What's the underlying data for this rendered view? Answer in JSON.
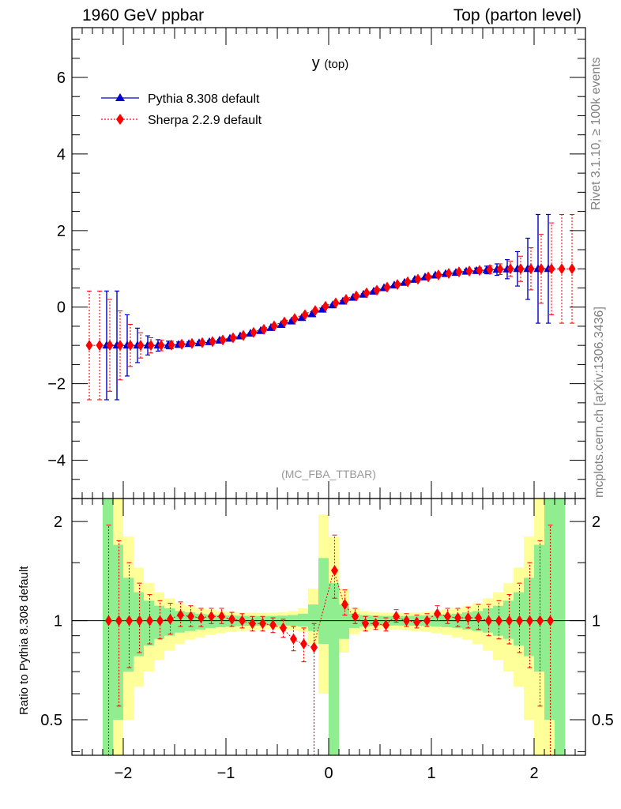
{
  "header": {
    "left": "1960 GeV ppbar",
    "right": "Top (parton level)"
  },
  "side_labels": {
    "top": "Rivet 3.1.10, ≥ 100k events",
    "bottom": "mcplots.cern.ch [arXiv:1306.3436]"
  },
  "colors": {
    "pythia": "#0000cc",
    "sherpa": "#ff0000",
    "band_green": "#90ee90",
    "band_yellow": "#ffff99",
    "watermark": "#999999"
  },
  "chart_data": [
    {
      "type": "scatter",
      "panel": "main",
      "title": "y",
      "title_suffix": "(top)",
      "watermark": "(MC_FBA_TTBAR)",
      "xlim": [
        -2.5,
        2.5
      ],
      "ylim": [
        -5.0,
        7.3
      ],
      "yticks": [
        -4,
        -2,
        0,
        2,
        4,
        6
      ],
      "ytick_labels": [
        "−4",
        "−2",
        "0",
        "2",
        "4",
        "6"
      ],
      "xticks": [
        -2,
        -1,
        0,
        1,
        2
      ],
      "xtick_labels": [
        "−2",
        "−1",
        "0",
        "1",
        "2"
      ],
      "legend_position": "top-left",
      "x": [
        -2.35,
        -2.25,
        -2.15,
        -2.05,
        -1.95,
        -1.85,
        -1.75,
        -1.65,
        -1.55,
        -1.45,
        -1.35,
        -1.25,
        -1.15,
        -1.05,
        -0.95,
        -0.85,
        -0.75,
        -0.65,
        -0.55,
        -0.45,
        -0.35,
        -0.25,
        -0.15,
        -0.05,
        0.05,
        0.15,
        0.25,
        0.35,
        0.45,
        0.55,
        0.65,
        0.75,
        0.85,
        0.95,
        1.05,
        1.15,
        1.25,
        1.35,
        1.45,
        1.55,
        1.65,
        1.75,
        1.85,
        1.95,
        2.05,
        2.15,
        2.25,
        2.35
      ],
      "series": [
        {
          "name": "Pythia 8.308 default",
          "marker": "triangle",
          "values": [
            null,
            null,
            -1.0,
            -1.0,
            -1.0,
            -1.0,
            -1.0,
            -1.0,
            -0.99,
            -0.98,
            -0.96,
            -0.94,
            -0.91,
            -0.87,
            -0.82,
            -0.76,
            -0.69,
            -0.62,
            -0.54,
            -0.46,
            -0.37,
            -0.28,
            -0.18,
            -0.06,
            0.05,
            0.15,
            0.25,
            0.33,
            0.41,
            0.5,
            0.57,
            0.64,
            0.72,
            0.78,
            0.83,
            0.87,
            0.9,
            0.93,
            0.95,
            0.97,
            0.98,
            0.99,
            1.0,
            1.0,
            1.0,
            1.0,
            null,
            null
          ],
          "errors": [
            null,
            null,
            1.42,
            1.42,
            0.8,
            0.45,
            0.25,
            0.15,
            0.1,
            0.07,
            0.05,
            0.04,
            0.03,
            0.03,
            0.02,
            0.02,
            0.02,
            0.02,
            0.02,
            0.02,
            0.02,
            0.02,
            0.02,
            0.02,
            0.02,
            0.02,
            0.02,
            0.02,
            0.02,
            0.02,
            0.02,
            0.02,
            0.02,
            0.02,
            0.03,
            0.03,
            0.04,
            0.05,
            0.07,
            0.1,
            0.15,
            0.25,
            0.45,
            0.8,
            1.42,
            1.42,
            null,
            null
          ]
        },
        {
          "name": "Sherpa 2.2.9 default",
          "marker": "diamond",
          "values": [
            -1.0,
            -1.0,
            -1.0,
            -1.0,
            -1.0,
            -1.0,
            -1.0,
            -1.0,
            -0.99,
            -0.97,
            -0.95,
            -0.93,
            -0.9,
            -0.86,
            -0.8,
            -0.74,
            -0.66,
            -0.58,
            -0.49,
            -0.39,
            -0.3,
            -0.2,
            -0.09,
            0.02,
            0.11,
            0.2,
            0.29,
            0.37,
            0.44,
            0.52,
            0.59,
            0.66,
            0.73,
            0.79,
            0.84,
            0.88,
            0.92,
            0.94,
            0.96,
            0.98,
            0.99,
            1.0,
            1.0,
            1.0,
            1.0,
            1.0,
            1.0,
            1.0
          ],
          "errors": [
            1.42,
            1.42,
            1.2,
            0.9,
            0.55,
            0.33,
            0.2,
            0.14,
            0.1,
            0.07,
            0.05,
            0.04,
            0.03,
            0.03,
            0.02,
            0.02,
            0.02,
            0.02,
            0.02,
            0.02,
            0.02,
            0.02,
            0.02,
            0.02,
            0.02,
            0.02,
            0.02,
            0.02,
            0.02,
            0.02,
            0.02,
            0.02,
            0.02,
            0.02,
            0.03,
            0.03,
            0.04,
            0.05,
            0.07,
            0.1,
            0.14,
            0.2,
            0.33,
            0.55,
            0.9,
            1.2,
            1.42,
            1.42
          ]
        }
      ]
    },
    {
      "type": "scatter",
      "panel": "ratio",
      "ylabel": "Ratio to Pythia 8.308 default",
      "ylog": true,
      "xlim": [
        -2.5,
        2.5
      ],
      "ylim": [
        0.39,
        2.35
      ],
      "yticks": [
        0.5,
        1,
        2
      ],
      "ytick_labels": [
        "0.5",
        "1",
        "2"
      ],
      "xticks": [
        -2,
        -1,
        0,
        1,
        2
      ],
      "xtick_labels": [
        "−2",
        "−1",
        "0",
        "1",
        "2"
      ],
      "reference_line": 1,
      "x": [
        -2.35,
        -2.25,
        -2.15,
        -2.05,
        -1.95,
        -1.85,
        -1.75,
        -1.65,
        -1.55,
        -1.45,
        -1.35,
        -1.25,
        -1.15,
        -1.05,
        -0.95,
        -0.85,
        -0.75,
        -0.65,
        -0.55,
        -0.45,
        -0.35,
        -0.25,
        -0.15,
        -0.05,
        0.05,
        0.15,
        0.25,
        0.35,
        0.45,
        0.55,
        0.65,
        0.75,
        0.85,
        0.95,
        1.05,
        1.15,
        1.25,
        1.35,
        1.45,
        1.55,
        1.65,
        1.75,
        1.85,
        1.95,
        2.05,
        2.15,
        2.25,
        2.35
      ],
      "bands": {
        "green_low": [
          null,
          null,
          0.3,
          0.5,
          0.7,
          0.78,
          0.84,
          0.88,
          0.9,
          0.92,
          0.93,
          0.94,
          0.95,
          0.955,
          0.96,
          0.963,
          0.965,
          0.966,
          0.967,
          0.966,
          0.964,
          0.96,
          0.93,
          0.85,
          0.3,
          0.88,
          0.95,
          0.96,
          0.964,
          0.966,
          0.967,
          0.966,
          0.965,
          0.963,
          0.96,
          0.955,
          0.95,
          0.94,
          0.93,
          0.92,
          0.9,
          0.88,
          0.84,
          0.78,
          0.7,
          0.5,
          0.3,
          null
        ],
        "green_high": [
          null,
          null,
          2.4,
          1.7,
          1.35,
          1.22,
          1.15,
          1.11,
          1.09,
          1.07,
          1.06,
          1.05,
          1.045,
          1.04,
          1.037,
          1.035,
          1.034,
          1.033,
          1.034,
          1.036,
          1.04,
          1.05,
          1.12,
          1.55,
          1.3,
          1.12,
          1.05,
          1.04,
          1.036,
          1.034,
          1.033,
          1.034,
          1.035,
          1.037,
          1.04,
          1.045,
          1.05,
          1.06,
          1.07,
          1.09,
          1.11,
          1.15,
          1.22,
          1.35,
          1.7,
          2.4,
          2.4,
          null
        ],
        "yellow_low": [
          null,
          null,
          0.3,
          0.3,
          0.5,
          0.63,
          0.7,
          0.76,
          0.81,
          0.85,
          0.875,
          0.89,
          0.905,
          0.915,
          0.925,
          0.93,
          0.935,
          0.94,
          0.942,
          0.94,
          0.935,
          0.925,
          0.85,
          0.6,
          0.3,
          0.8,
          0.91,
          0.93,
          0.94,
          0.942,
          0.94,
          0.935,
          0.93,
          0.925,
          0.915,
          0.905,
          0.89,
          0.875,
          0.85,
          0.81,
          0.76,
          0.7,
          0.63,
          0.5,
          0.3,
          0.3,
          0.3,
          null
        ],
        "yellow_high": [
          null,
          null,
          2.4,
          2.4,
          1.8,
          1.45,
          1.3,
          1.22,
          1.17,
          1.13,
          1.11,
          1.09,
          1.08,
          1.07,
          1.065,
          1.06,
          1.058,
          1.056,
          1.058,
          1.062,
          1.07,
          1.09,
          1.25,
          2.1,
          1.8,
          1.25,
          1.09,
          1.07,
          1.062,
          1.058,
          1.056,
          1.058,
          1.06,
          1.065,
          1.07,
          1.08,
          1.09,
          1.11,
          1.13,
          1.17,
          1.22,
          1.3,
          1.45,
          1.8,
          2.4,
          2.4,
          2.4,
          null
        ]
      },
      "series": [
        {
          "name": "Sherpa 2.2.9 default",
          "marker": "diamond",
          "values": [
            null,
            null,
            1.0,
            1.0,
            1.0,
            1.0,
            1.0,
            1.0,
            1.01,
            1.04,
            1.03,
            1.02,
            1.03,
            1.03,
            1.01,
            1.0,
            0.98,
            0.98,
            0.97,
            0.95,
            0.88,
            0.85,
            0.83,
            null,
            1.42,
            1.12,
            1.03,
            0.98,
            0.98,
            0.97,
            1.03,
            1.0,
            0.99,
            1.0,
            1.05,
            1.03,
            1.02,
            1.02,
            1.02,
            1.0,
            1.0,
            1.0,
            1.0,
            1.0,
            1.0,
            1.0,
            null,
            null
          ],
          "err_low": [
            null,
            null,
            0.75,
            0.45,
            0.28,
            0.2,
            0.15,
            0.12,
            0.1,
            0.08,
            0.07,
            0.06,
            0.05,
            0.05,
            0.05,
            0.05,
            0.05,
            0.05,
            0.05,
            0.06,
            0.07,
            0.1,
            0.45,
            null,
            0.25,
            0.08,
            0.05,
            0.05,
            0.04,
            0.04,
            0.04,
            0.04,
            0.04,
            0.04,
            0.05,
            0.05,
            0.06,
            0.07,
            0.08,
            0.1,
            0.12,
            0.15,
            0.2,
            0.28,
            0.45,
            0.75,
            null,
            null
          ],
          "err_high": [
            null,
            null,
            0.95,
            0.75,
            0.5,
            0.3,
            0.2,
            0.15,
            0.12,
            0.1,
            0.08,
            0.07,
            0.06,
            0.06,
            0.05,
            0.05,
            0.05,
            0.05,
            0.05,
            0.06,
            0.08,
            0.1,
            0.15,
            null,
            0.4,
            0.12,
            0.06,
            0.05,
            0.05,
            0.05,
            0.05,
            0.05,
            0.05,
            0.05,
            0.06,
            0.06,
            0.07,
            0.08,
            0.1,
            0.12,
            0.15,
            0.2,
            0.3,
            0.5,
            0.75,
            0.95,
            null,
            null
          ]
        }
      ]
    }
  ]
}
